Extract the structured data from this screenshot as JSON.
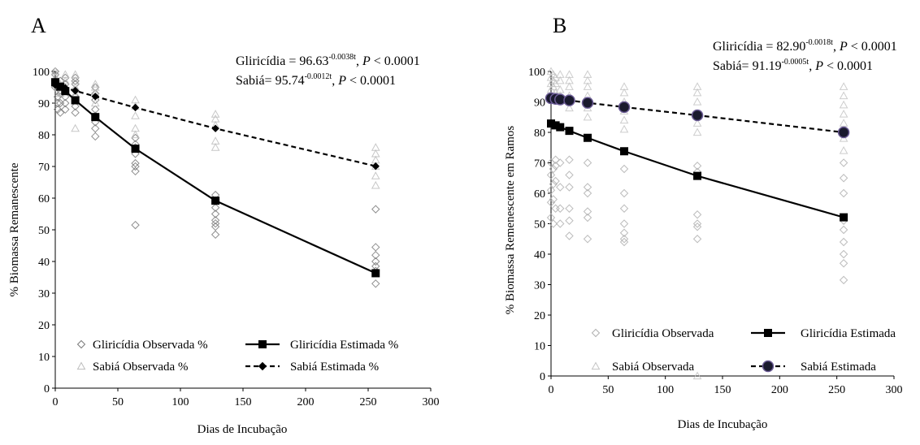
{
  "chart_data": [
    {
      "type": "scatter",
      "panel_label": "A",
      "title": "",
      "xlabel": "Dias de Incubação",
      "ylabel": "% Biomassa Remanescente",
      "xlim": [
        0,
        300
      ],
      "ylim": [
        0,
        100
      ],
      "x_ticks": [
        "0",
        "50",
        "100",
        "150",
        "200",
        "250",
        "300"
      ],
      "y_ticks": [
        "0",
        "10",
        "20",
        "30",
        "40",
        "50",
        "60",
        "70",
        "80",
        "90",
        "100"
      ],
      "equations": [
        {
          "label": "Gliricídia = 96.63",
          "exponent": "-0.0038t",
          "sep": ", ",
          "p_symbol": "P",
          "p_rest": " < 0.0001"
        },
        {
          "label": "Sabiá= 95.74",
          "exponent": "-0.0012t",
          "sep": ", ",
          "p_symbol": "P",
          "p_rest": " < 0.0001"
        }
      ],
      "legend_position": "bottom",
      "series": [
        {
          "name": "Gliricídia  Observada %",
          "kind": "observed",
          "marker": "diamond",
          "color": "#7a7a7a",
          "points": [
            [
              0,
              100
            ],
            [
              0,
              99
            ],
            [
              0,
              97
            ],
            [
              0,
              96
            ],
            [
              0,
              95
            ],
            [
              2,
              92
            ],
            [
              2,
              90
            ],
            [
              2,
              88
            ],
            [
              4,
              97
            ],
            [
              4,
              94
            ],
            [
              4,
              93
            ],
            [
              4,
              90
            ],
            [
              4,
              87
            ],
            [
              8,
              98
            ],
            [
              8,
              96
            ],
            [
              8,
              94
            ],
            [
              8,
              92
            ],
            [
              8,
              90
            ],
            [
              8,
              88
            ],
            [
              16,
              98
            ],
            [
              16,
              97
            ],
            [
              16,
              96
            ],
            [
              16,
              94
            ],
            [
              16,
              92
            ],
            [
              16,
              89
            ],
            [
              16,
              87
            ],
            [
              32,
              95
            ],
            [
              32,
              93
            ],
            [
              32,
              91
            ],
            [
              32,
              88
            ],
            [
              32,
              86
            ],
            [
              32,
              84
            ],
            [
              32,
              82
            ],
            [
              32,
              79.5
            ],
            [
              64,
              79
            ],
            [
              64,
              77
            ],
            [
              64,
              76
            ],
            [
              64,
              74
            ],
            [
              64,
              71
            ],
            [
              64,
              70
            ],
            [
              64,
              68.5
            ],
            [
              64,
              51.5
            ],
            [
              128,
              61
            ],
            [
              128,
              59
            ],
            [
              128,
              57
            ],
            [
              128,
              55
            ],
            [
              128,
              53
            ],
            [
              128,
              52
            ],
            [
              128,
              51
            ],
            [
              128,
              48.5
            ],
            [
              256,
              56.5
            ],
            [
              256,
              44.5
            ],
            [
              256,
              42
            ],
            [
              256,
              40
            ],
            [
              256,
              38.5
            ],
            [
              256,
              37
            ],
            [
              256,
              33
            ]
          ]
        },
        {
          "name": "Sabiá  Observada %",
          "kind": "observed",
          "marker": "triangle",
          "color": "#bdbdbd",
          "points": [
            [
              0,
              100
            ],
            [
              0,
              98
            ],
            [
              0,
              96
            ],
            [
              2,
              97
            ],
            [
              2,
              95
            ],
            [
              4,
              96
            ],
            [
              4,
              93
            ],
            [
              8,
              99
            ],
            [
              8,
              97
            ],
            [
              8,
              95
            ],
            [
              16,
              99
            ],
            [
              16,
              97
            ],
            [
              16,
              95
            ],
            [
              16,
              93
            ],
            [
              16,
              82
            ],
            [
              32,
              96
            ],
            [
              32,
              95
            ],
            [
              32,
              93
            ],
            [
              32,
              90
            ],
            [
              64,
              91
            ],
            [
              64,
              89
            ],
            [
              64,
              86
            ],
            [
              64,
              82
            ],
            [
              64,
              80
            ],
            [
              128,
              86.5
            ],
            [
              128,
              85
            ],
            [
              128,
              83
            ],
            [
              128,
              78
            ],
            [
              128,
              76
            ],
            [
              256,
              76
            ],
            [
              256,
              74
            ],
            [
              256,
              72
            ],
            [
              256,
              70
            ],
            [
              256,
              67
            ],
            [
              256,
              64
            ]
          ]
        },
        {
          "name": "Gliricídia Estimada %",
          "kind": "estimated",
          "line": "solid",
          "marker": "square",
          "color": "#000000",
          "x": [
            0,
            4,
            8,
            16,
            32,
            64,
            128,
            256
          ],
          "values": [
            96.6,
            95.2,
            93.8,
            90.9,
            85.6,
            75.6,
            59.2,
            36.3
          ]
        },
        {
          "name": "Sabiá  Estimada %",
          "kind": "estimated",
          "line": "dashed",
          "marker": "diamond",
          "color": "#000000",
          "x": [
            0,
            4,
            8,
            16,
            32,
            64,
            128,
            256
          ],
          "values": [
            95.7,
            95.3,
            94.8,
            93.9,
            92.1,
            88.6,
            82.0,
            70.1
          ]
        }
      ]
    },
    {
      "type": "scatter",
      "panel_label": "B",
      "title": "",
      "xlabel": "Dias de Incubação",
      "ylabel": "% Biomassa Remenescente em Ramos",
      "xlim": [
        0,
        300
      ],
      "ylim": [
        0,
        100
      ],
      "x_ticks": [
        "0",
        "50",
        "100",
        "150",
        "200",
        "250",
        "300"
      ],
      "y_ticks": [
        "0",
        "10",
        "20",
        "30",
        "40",
        "50",
        "60",
        "70",
        "80",
        "90",
        "100"
      ],
      "equations": [
        {
          "label": "Gliricídia = 82.90",
          "exponent": "-0.0018t",
          "sep": ", ",
          "p_symbol": "P",
          "p_rest": " < 0.0001"
        },
        {
          "label": "Sabiá= 91.19",
          "exponent": "-0.0005t",
          "sep": ", ",
          "p_symbol": "P",
          "p_rest": " < 0.0001"
        }
      ],
      "legend_position": "bottom",
      "series": [
        {
          "name": "Gliricídia  Observada",
          "kind": "observed",
          "marker": "diamond",
          "color": "#b0b0b0",
          "points": [
            [
              0,
              70
            ],
            [
              0,
              66
            ],
            [
              0,
              61
            ],
            [
              0,
              57
            ],
            [
              0,
              52
            ],
            [
              2,
              68
            ],
            [
              2,
              63
            ],
            [
              2,
              58
            ],
            [
              2,
              50
            ],
            [
              4,
              71
            ],
            [
              4,
              69
            ],
            [
              4,
              64
            ],
            [
              4,
              55
            ],
            [
              8,
              70
            ],
            [
              8,
              62
            ],
            [
              8,
              55
            ],
            [
              8,
              50
            ],
            [
              16,
              71
            ],
            [
              16,
              66
            ],
            [
              16,
              62
            ],
            [
              16,
              55
            ],
            [
              16,
              51
            ],
            [
              16,
              46
            ],
            [
              32,
              70
            ],
            [
              32,
              62
            ],
            [
              32,
              60
            ],
            [
              32,
              54
            ],
            [
              32,
              52
            ],
            [
              32,
              45
            ],
            [
              64,
              68
            ],
            [
              64,
              60
            ],
            [
              64,
              55
            ],
            [
              64,
              50
            ],
            [
              64,
              47
            ],
            [
              64,
              45
            ],
            [
              64,
              44
            ],
            [
              128,
              69
            ],
            [
              128,
              67
            ],
            [
              128,
              53
            ],
            [
              128,
              50
            ],
            [
              128,
              49
            ],
            [
              128,
              45
            ],
            [
              256,
              70
            ],
            [
              256,
              65
            ],
            [
              256,
              60
            ],
            [
              256,
              51
            ],
            [
              256,
              48
            ],
            [
              256,
              44
            ],
            [
              256,
              40
            ],
            [
              256,
              37
            ],
            [
              256,
              31.5
            ]
          ]
        },
        {
          "name": "Sabiá  Observada",
          "kind": "observed",
          "marker": "triangle",
          "color": "#c4c4c4",
          "points": [
            [
              0,
              100
            ],
            [
              0,
              98
            ],
            [
              0,
              96
            ],
            [
              0,
              94
            ],
            [
              2,
              99
            ],
            [
              2,
              97
            ],
            [
              2,
              95
            ],
            [
              4,
              98
            ],
            [
              4,
              96
            ],
            [
              4,
              93
            ],
            [
              8,
              99
            ],
            [
              8,
              97
            ],
            [
              8,
              94
            ],
            [
              8,
              92
            ],
            [
              16,
              99
            ],
            [
              16,
              97
            ],
            [
              16,
              95
            ],
            [
              16,
              92
            ],
            [
              16,
              88
            ],
            [
              32,
              99
            ],
            [
              32,
              97
            ],
            [
              32,
              95
            ],
            [
              32,
              92
            ],
            [
              32,
              88
            ],
            [
              32,
              85
            ],
            [
              64,
              95
            ],
            [
              64,
              93
            ],
            [
              64,
              90
            ],
            [
              64,
              87
            ],
            [
              64,
              84
            ],
            [
              64,
              81
            ],
            [
              128,
              95
            ],
            [
              128,
              93
            ],
            [
              128,
              90
            ],
            [
              128,
              86
            ],
            [
              128,
              83
            ],
            [
              128,
              80
            ],
            [
              128,
              0
            ],
            [
              256,
              95
            ],
            [
              256,
              92
            ],
            [
              256,
              89
            ],
            [
              256,
              86
            ],
            [
              256,
              83
            ],
            [
              256,
              80
            ],
            [
              256,
              78
            ],
            [
              256,
              74
            ]
          ]
        },
        {
          "name": "Gliricídia Estimada",
          "kind": "estimated",
          "line": "solid",
          "marker": "square",
          "color": "#000000",
          "x": [
            0,
            4,
            8,
            16,
            32,
            64,
            128,
            256
          ],
          "values": [
            82.9,
            82.3,
            81.7,
            80.5,
            78.2,
            73.8,
            65.7,
            52.1
          ]
        },
        {
          "name": "Sabiá  Estimada",
          "kind": "estimated",
          "line": "dashed",
          "marker": "circle",
          "color": "#000000",
          "x": [
            0,
            4,
            8,
            16,
            32,
            64,
            128,
            256
          ],
          "values": [
            91.2,
            91.0,
            90.8,
            90.5,
            89.7,
            88.3,
            85.6,
            80.0
          ]
        }
      ]
    }
  ]
}
